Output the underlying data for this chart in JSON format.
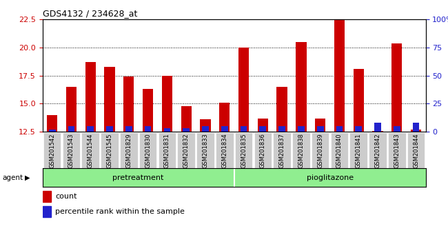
{
  "title": "GDS4132 / 234628_at",
  "samples": [
    "GSM201542",
    "GSM201543",
    "GSM201544",
    "GSM201545",
    "GSM201829",
    "GSM201830",
    "GSM201831",
    "GSM201832",
    "GSM201833",
    "GSM201834",
    "GSM201835",
    "GSM201836",
    "GSM201837",
    "GSM201838",
    "GSM201839",
    "GSM201840",
    "GSM201841",
    "GSM201842",
    "GSM201843",
    "GSM201844"
  ],
  "count_values": [
    14.0,
    16.5,
    18.7,
    18.3,
    17.4,
    16.3,
    17.5,
    14.8,
    13.6,
    15.1,
    20.0,
    13.7,
    16.5,
    20.5,
    13.7,
    22.5,
    18.1,
    12.6,
    20.4,
    12.7
  ],
  "percentile_values": [
    2,
    5,
    5,
    5,
    5,
    5,
    3,
    3,
    5,
    5,
    5,
    5,
    5,
    5,
    5,
    5,
    5,
    8,
    5,
    8
  ],
  "pretreatment_count": 10,
  "ylim_left": [
    12.5,
    22.5
  ],
  "ylim_right": [
    0,
    100
  ],
  "yticks_left": [
    12.5,
    15.0,
    17.5,
    20.0,
    22.5
  ],
  "yticks_right": [
    0,
    25,
    50,
    75,
    100
  ],
  "bar_color_red": "#cc0000",
  "bar_color_blue": "#2222cc",
  "bar_width": 0.55,
  "blue_bar_width": 0.35,
  "base_value": 12.5,
  "background_plot": "#ffffff",
  "grid_color": "black",
  "legend_count_label": "count",
  "legend_percentile_label": "percentile rank within the sample",
  "agent_label": "agent",
  "title_color": "black",
  "left_tick_color": "#cc0000",
  "right_tick_color": "#2222cc",
  "group_label_1": "pretreatment",
  "group_label_2": "pioglitazone",
  "group_color": "#90ee90",
  "xticklabel_bg": "#cccccc"
}
